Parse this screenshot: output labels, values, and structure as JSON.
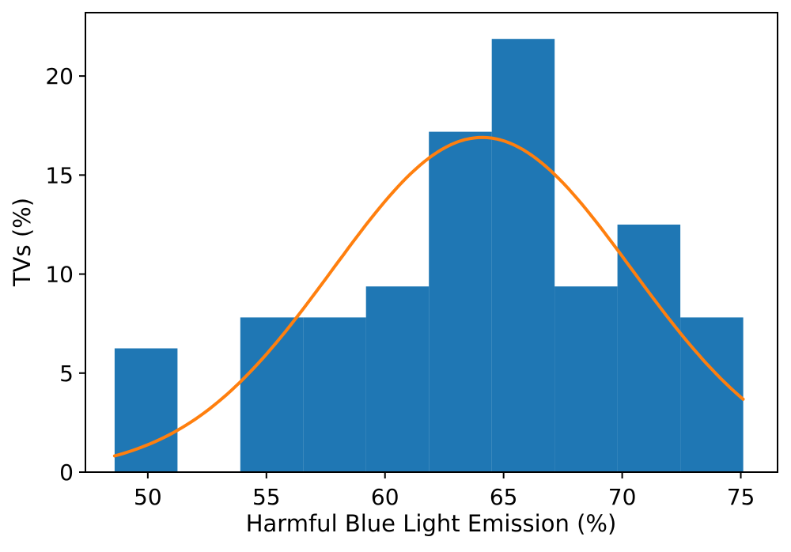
{
  "figure": {
    "background": "#ffffff"
  },
  "chart_data": {
    "type": "bar",
    "subtype": "histogram_with_fit_curve",
    "title": "",
    "xlabel": "Harmful Blue Light Emission (%)",
    "ylabel": "TVs (%)",
    "xlim": [
      47.37,
      76.55
    ],
    "ylim": [
      0,
      23.2
    ],
    "xticks": [
      50,
      55,
      60,
      65,
      70,
      75
    ],
    "yticks": [
      0,
      5,
      10,
      15,
      20
    ],
    "grid": false,
    "legend": null,
    "histogram": {
      "bin_edges": [
        48.6,
        51.25,
        53.9,
        56.55,
        59.2,
        61.85,
        64.5,
        67.15,
        69.8,
        72.45,
        75.1
      ],
      "values": [
        6.25,
        0,
        7.8125,
        7.8125,
        9.375,
        17.1875,
        21.875,
        9.375,
        12.5,
        7.8125
      ],
      "bar_color": "#1f77b4"
    },
    "fit_curve": {
      "shape": "gaussian",
      "amplitude": 16.9,
      "mean": 64.1,
      "sigma": 6.3,
      "x_start": 48.6,
      "x_end": 75.1,
      "line_color": "#ff7f0e",
      "line_width": 4
    },
    "axis_color": "#000000"
  }
}
